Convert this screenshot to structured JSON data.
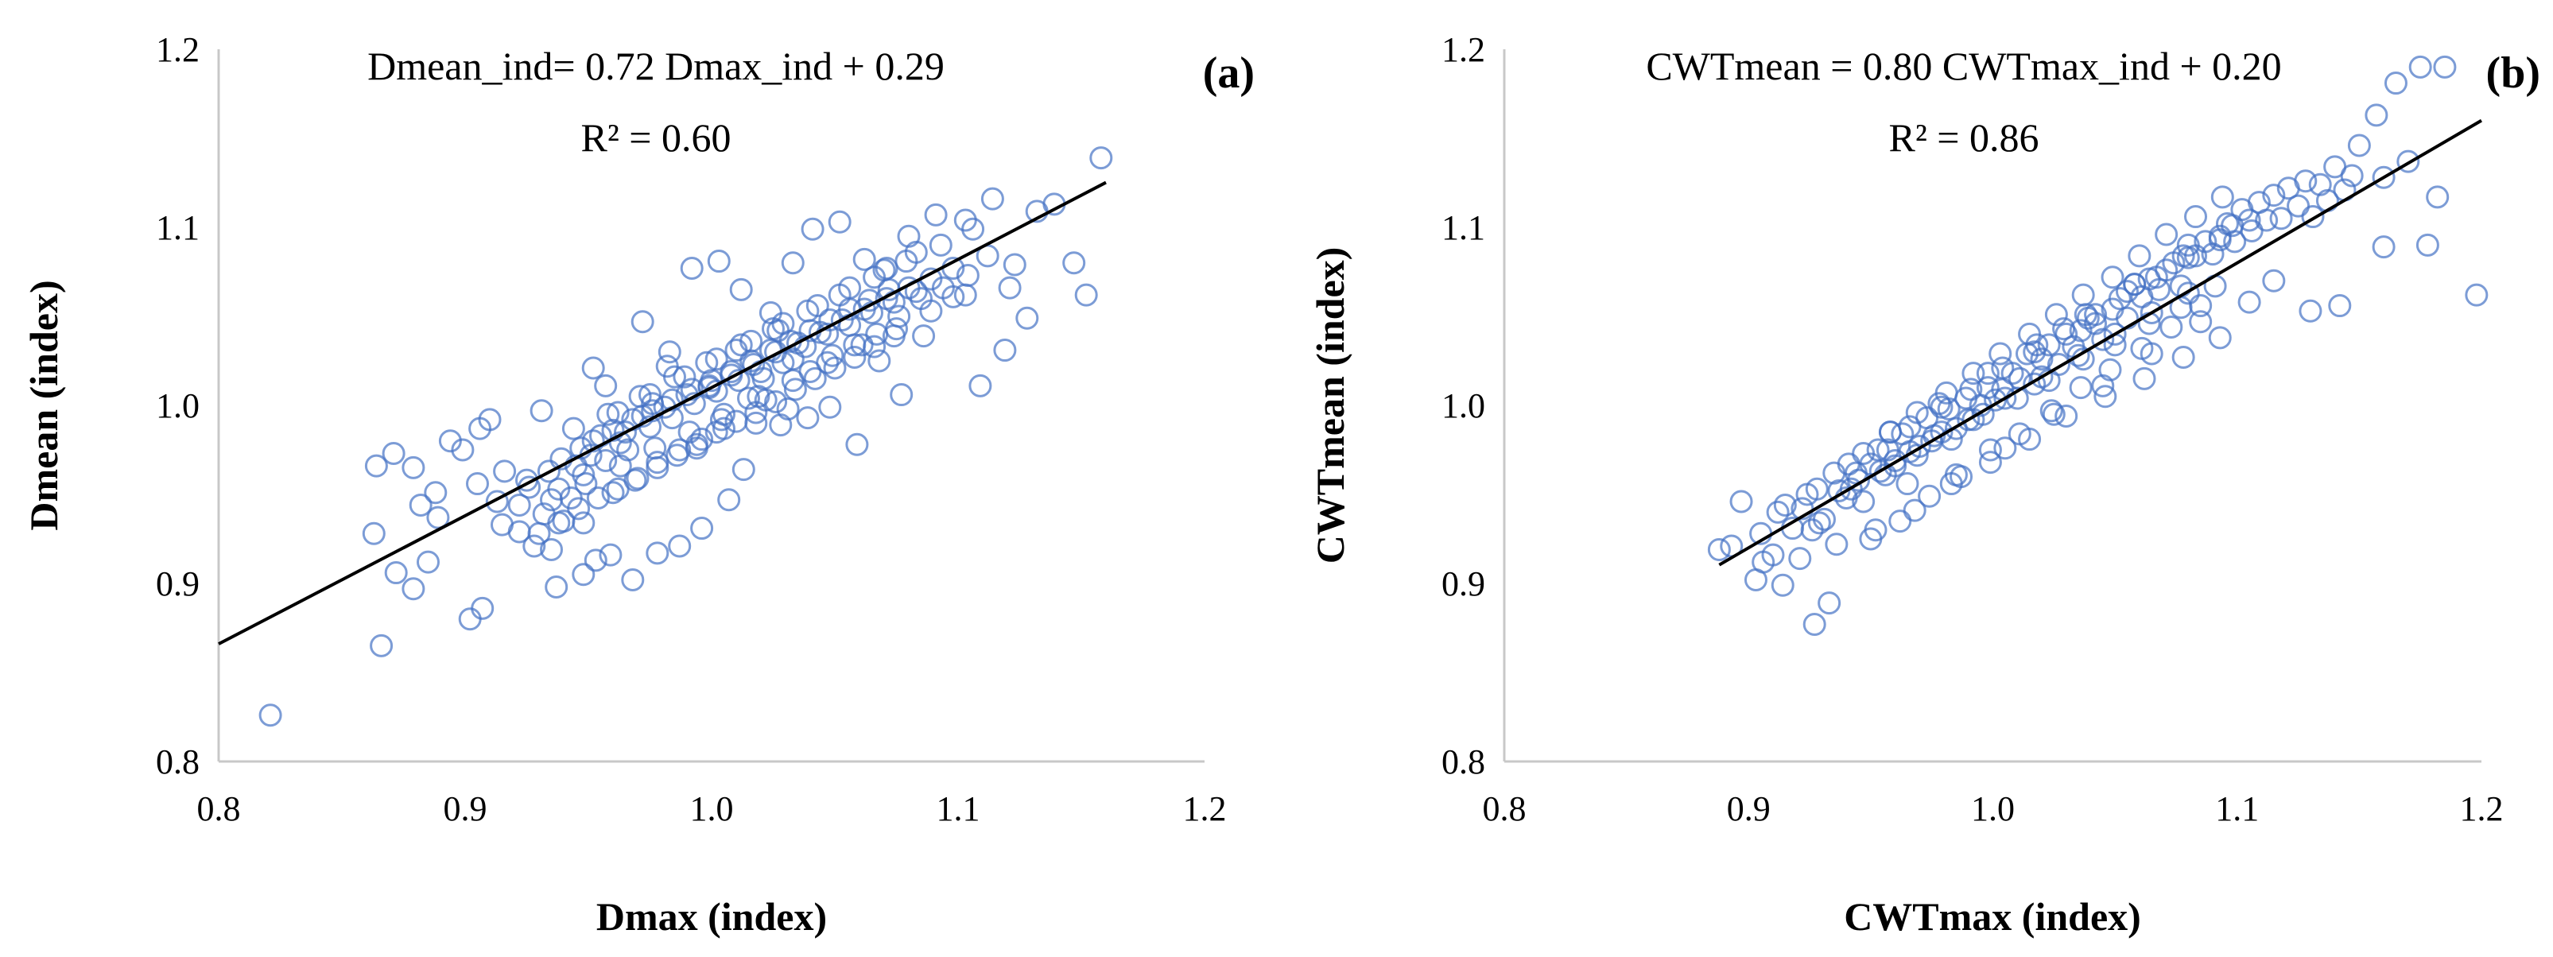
{
  "chart_data": [
    {
      "type": "scatter",
      "panel_label": "(a)",
      "equation": "Dmean_ind= 0.72 Dmax_ind + 0.29",
      "r_squared": "R² = 0.60",
      "xlabel": "Dmax (index)",
      "ylabel": "Dmean (index)",
      "xlim": [
        0.8,
        1.2
      ],
      "ylim": [
        0.8,
        1.2
      ],
      "xticks": [
        "0.8",
        "0.9",
        "1.0",
        "1.1",
        "1.2"
      ],
      "yticks": [
        "0.8",
        "0.9",
        "1.0",
        "1.1",
        "1.2"
      ],
      "grid": false,
      "marker_color": "#4472C4",
      "trendline": {
        "slope": 0.72,
        "intercept": 0.29,
        "x_range": [
          0.8,
          1.16
        ],
        "color": "#000000"
      },
      "points": {
        "x": [
          0.821,
          0.866,
          0.863,
          0.872,
          0.879,
          0.885,
          0.888,
          0.902,
          0.907,
          0.905,
          0.913,
          0.922,
          0.928,
          0.935,
          0.937,
          0.948,
          0.953,
          0.864,
          0.871,
          0.879,
          0.882,
          0.889,
          0.894,
          0.899,
          0.906,
          0.91,
          0.916,
          0.925,
          0.931,
          0.938,
          0.945,
          0.952,
          0.957,
          0.965,
          0.972,
          0.983,
          0.992,
          1.003,
          1.012,
          1.024,
          1.033,
          1.041,
          1.052,
          1.062,
          1.071,
          1.08,
          1.091,
          1.103,
          1.114,
          1.123,
          1.132,
          1.158,
          1.152,
          1.147,
          1.139,
          1.128,
          1.119,
          1.109,
          1.098,
          1.086,
          1.077,
          1.068,
          1.059,
          1.048,
          1.039,
          1.028,
          1.018,
          1.007,
          0.996,
          0.987,
          0.978,
          0.968,
          0.959,
          0.948,
          0.94,
          0.932,
          0.922,
          0.915,
          0.926,
          0.934,
          0.943,
          0.951,
          0.96,
          0.969,
          0.978,
          0.987,
          0.996,
          1.005,
          1.013,
          1.022,
          1.031,
          1.04,
          1.049,
          1.058,
          1.067,
          1.076,
          1.085,
          1.094,
          1.104,
          1.112,
          1.121,
          0.939,
          0.947,
          0.955,
          0.963,
          0.972,
          0.981,
          0.99,
          0.999,
          1.008,
          1.017,
          1.026,
          1.035,
          1.044,
          1.053,
          1.062,
          1.071,
          1.08,
          1.089,
          1.098,
          0.948,
          0.957,
          0.966,
          0.975,
          0.984,
          0.993,
          1.002,
          1.011,
          1.02,
          1.029,
          1.038,
          1.047,
          1.056,
          1.065,
          1.074,
          1.083,
          0.93,
          0.938,
          0.946,
          0.954,
          0.962,
          0.97,
          0.978,
          0.986,
          0.994,
          1.002,
          1.01,
          1.018,
          1.026,
          1.034,
          1.042,
          1.05,
          1.058,
          1.066,
          1.074,
          0.952,
          0.96,
          0.968,
          0.976,
          0.984,
          0.992,
          1.0,
          1.008,
          1.016,
          1.024,
          1.032,
          1.04,
          1.048,
          1.056,
          1.064,
          1.072,
          0.944,
          0.958,
          0.971,
          0.985,
          0.998,
          1.012,
          1.025,
          1.039,
          1.052,
          1.066,
          1.079,
          1.093,
          1.106,
          0.962,
          0.975,
          0.989,
          1.002,
          1.016,
          1.029,
          1.043,
          1.056,
          1.07,
          1.083,
          0.935,
          0.949,
          0.963,
          0.977,
          0.991,
          1.005,
          1.019,
          1.033,
          1.047,
          1.061,
          1.075,
          1.089,
          1.103,
          0.976,
          0.982,
          0.994,
          0.999,
          1.004,
          1.01,
          1.015,
          1.021,
          1.027,
          1.033
        ],
        "y": [
          0.826,
          0.865,
          0.928,
          0.906,
          0.897,
          0.912,
          0.951,
          0.88,
          0.886,
          0.956,
          0.946,
          0.929,
          0.921,
          0.919,
          0.898,
          0.905,
          0.913,
          0.966,
          0.973,
          0.965,
          0.944,
          0.937,
          0.98,
          0.975,
          0.987,
          0.992,
          0.963,
          0.958,
          0.997,
          0.953,
          0.966,
          1.021,
          1.011,
          0.985,
          1.047,
          1.03,
          1.077,
          1.081,
          1.065,
          1.052,
          1.08,
          1.099,
          1.103,
          1.082,
          1.077,
          1.095,
          1.107,
          1.104,
          1.116,
          1.079,
          1.109,
          1.139,
          1.062,
          1.08,
          1.113,
          1.049,
          1.031,
          1.011,
          1.061,
          1.039,
          1.006,
          1.025,
          0.978,
          0.999,
          0.993,
          0.989,
          0.99,
          0.947,
          0.931,
          0.921,
          0.917,
          0.902,
          0.916,
          0.934,
          0.935,
          0.939,
          0.944,
          0.933,
          0.954,
          0.963,
          0.948,
          0.972,
          0.951,
          0.958,
          0.968,
          0.975,
          0.981,
          0.987,
          0.964,
          1.003,
          0.998,
          1.019,
          1.028,
          1.034,
          1.04,
          1.05,
          1.06,
          1.066,
          1.073,
          1.084,
          1.066,
          0.97,
          0.976,
          0.983,
          0.979,
          0.994,
          0.999,
          1.006,
          1.011,
          1.017,
          1.023,
          1.03,
          1.035,
          1.041,
          1.048,
          1.054,
          1.06,
          1.066,
          1.071,
          1.077,
          0.961,
          0.969,
          0.975,
          0.988,
          0.993,
          1.001,
          1.008,
          1.014,
          1.019,
          1.024,
          1.033,
          1.04,
          1.045,
          1.052,
          1.058,
          1.064,
          0.928,
          0.934,
          0.942,
          0.948,
          0.953,
          0.959,
          0.965,
          0.972,
          0.978,
          0.985,
          0.991,
          0.996,
          1.002,
          1.009,
          1.015,
          1.021,
          1.027,
          1.033,
          1.039,
          0.98,
          0.986,
          0.992,
          0.997,
          1.003,
          1.009,
          1.014,
          1.019,
          1.025,
          1.031,
          1.036,
          1.042,
          1.048,
          1.054,
          1.059,
          1.065,
          0.987,
          0.995,
          1.005,
          1.016,
          1.024,
          1.034,
          1.043,
          1.053,
          1.062,
          1.072,
          1.081,
          1.09,
          1.099,
          0.996,
          1.006,
          1.016,
          1.026,
          1.036,
          1.046,
          1.056,
          1.066,
          1.076,
          1.086,
          0.947,
          0.956,
          0.966,
          0.976,
          0.985,
          0.995,
          1.005,
          1.014,
          1.024,
          1.034,
          1.043,
          1.053,
          1.062,
          1.001,
          1.022,
          0.976,
          1.01,
          0.992,
          1.031,
          1.004,
          1.015,
          1.042,
          1.026
        ]
      }
    },
    {
      "type": "scatter",
      "panel_label": "(b)",
      "equation": "CWTmean = 0.80 CWTmax_ind + 0.20",
      "r_squared": "R² = 0.86",
      "xlabel": "CWTmax (index)",
      "ylabel": "CWTmean (index)",
      "xlim": [
        0.8,
        1.2
      ],
      "ylim": [
        0.8,
        1.2
      ],
      "xticks": [
        "0.8",
        "0.9",
        "1.0",
        "1.1",
        "1.2"
      ],
      "yticks": [
        "0.8",
        "0.9",
        "1.0",
        "1.1",
        "1.2"
      ],
      "grid": false,
      "marker_color": "#4472C4",
      "trendline": {
        "slope": 0.8,
        "intercept": 0.2,
        "x_range": [
          0.888,
          1.2
        ],
        "color": "#000000"
      },
      "points": {
        "x": [
          0.888,
          0.893,
          0.897,
          0.903,
          0.906,
          0.91,
          0.914,
          0.918,
          0.922,
          0.926,
          0.927,
          0.929,
          0.933,
          0.937,
          0.94,
          0.944,
          0.947,
          0.95,
          0.954,
          0.957,
          0.96,
          0.963,
          0.966,
          0.97,
          0.973,
          0.976,
          0.979,
          0.982,
          0.985,
          0.989,
          0.992,
          0.995,
          0.998,
          1.001,
          1.004,
          1.008,
          1.011,
          1.014,
          1.017,
          1.02,
          1.023,
          1.027,
          1.03,
          1.033,
          1.036,
          1.039,
          1.042,
          1.045,
          1.049,
          1.052,
          1.055,
          1.058,
          1.061,
          1.064,
          1.068,
          1.071,
          1.074,
          1.077,
          1.08,
          1.083,
          1.087,
          1.09,
          1.093,
          1.096,
          1.099,
          1.102,
          1.106,
          1.109,
          1.112,
          1.115,
          1.118,
          1.121,
          1.125,
          1.128,
          1.131,
          1.134,
          1.137,
          1.14,
          1.144,
          1.147,
          1.15,
          1.157,
          1.16,
          1.165,
          1.17,
          1.175,
          1.182,
          1.185,
          1.198,
          1.115,
          1.13,
          1.142,
          1.16,
          1.178,
          1.105,
          1.093,
          1.078,
          1.062,
          1.046,
          1.03,
          1.015,
          0.999,
          0.983,
          0.968,
          0.952,
          0.936,
          0.921,
          0.905,
          0.912,
          0.924,
          0.935,
          0.947,
          0.958,
          0.969,
          0.981,
          0.992,
          1.003,
          1.015,
          1.026,
          1.037,
          1.049,
          1.06,
          1.071,
          1.083,
          1.094,
          0.915,
          0.928,
          0.941,
          0.953,
          0.966,
          0.979,
          0.991,
          1.004,
          1.017,
          1.029,
          1.042,
          1.055,
          1.067,
          1.08,
          1.093,
          1.105,
          0.931,
          0.942,
          0.956,
          0.969,
          0.983,
          0.996,
          1.01,
          1.023,
          1.037,
          1.05,
          1.064,
          1.077,
          1.091,
          0.945,
          0.96,
          0.975,
          0.99,
          1.005,
          1.02,
          1.035,
          1.05,
          1.065,
          1.08,
          0.95,
          0.962,
          0.974,
          0.987,
          0.999,
          1.011,
          1.024,
          1.036,
          1.048,
          1.061,
          1.073,
          1.085,
          0.965,
          0.985,
          1.005,
          1.025,
          1.045,
          1.065,
          1.085,
          0.958,
          0.978,
          0.998,
          1.018,
          1.038,
          1.058,
          1.078,
          1.098
        ],
        "y": [
          0.919,
          0.921,
          0.946,
          0.902,
          0.912,
          0.916,
          0.899,
          0.931,
          0.942,
          0.93,
          0.877,
          0.934,
          0.889,
          0.952,
          0.948,
          0.962,
          0.946,
          0.967,
          0.963,
          0.975,
          0.966,
          0.984,
          0.974,
          0.977,
          0.993,
          0.983,
          0.985,
          0.998,
          0.987,
          1.004,
          0.992,
          1.0,
          1.01,
          1.003,
          1.009,
          1.018,
          1.015,
          1.029,
          1.012,
          1.026,
          1.034,
          1.023,
          1.04,
          1.033,
          1.042,
          1.049,
          1.046,
          1.037,
          1.054,
          1.06,
          1.049,
          1.068,
          1.061,
          1.071,
          1.065,
          1.076,
          1.08,
          1.067,
          1.09,
          1.084,
          1.092,
          1.085,
          1.095,
          1.102,
          1.092,
          1.11,
          1.098,
          1.114,
          1.104,
          1.118,
          1.105,
          1.122,
          1.112,
          1.126,
          1.106,
          1.124,
          1.115,
          1.134,
          1.121,
          1.129,
          1.146,
          1.163,
          1.128,
          1.181,
          1.137,
          1.19,
          1.117,
          1.19,
          1.062,
          1.07,
          1.053,
          1.056,
          1.089,
          1.09,
          1.058,
          1.038,
          1.027,
          1.015,
          1.005,
          0.994,
          0.981,
          0.968,
          0.956,
          0.941,
          0.93,
          0.922,
          0.914,
          0.928,
          0.94,
          0.95,
          0.962,
          0.973,
          0.985,
          0.996,
          1.007,
          1.018,
          1.029,
          1.04,
          1.051,
          1.062,
          1.072,
          1.084,
          1.096,
          1.106,
          1.117,
          0.944,
          0.953,
          0.967,
          0.975,
          0.988,
          0.999,
          1.009,
          1.021,
          1.03,
          1.043,
          1.051,
          1.064,
          1.072,
          1.083,
          1.093,
          1.104,
          0.936,
          0.953,
          0.961,
          0.972,
          0.981,
          0.995,
          1.004,
          1.014,
          1.026,
          1.034,
          1.046,
          1.055,
          1.067,
          0.958,
          0.969,
          0.98,
          0.992,
          1.004,
          1.016,
          1.028,
          1.04,
          1.052,
          1.063,
          0.925,
          0.935,
          0.949,
          0.96,
          0.975,
          0.984,
          0.997,
          1.01,
          1.02,
          1.032,
          1.044,
          1.056,
          0.956,
          0.961,
          0.976,
          0.995,
          1.011,
          1.029,
          1.047,
          0.985,
          1.001,
          1.018,
          1.034,
          1.051,
          1.068,
          1.084,
          1.101
        ]
      }
    }
  ]
}
